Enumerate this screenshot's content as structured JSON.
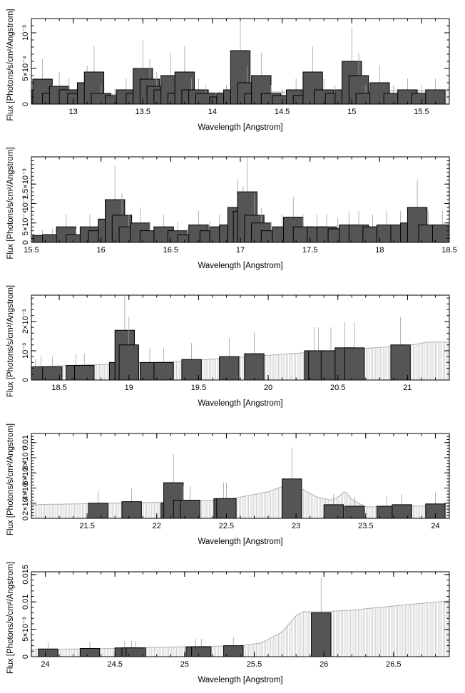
{
  "chart_data": [
    {
      "type": "line",
      "xlabel": "Wavelength [Angstrom]",
      "ylabel": "Flux [Photons/s/cm²/Angstrom]",
      "xlim": [
        12.7,
        15.7
      ],
      "ylim": [
        0,
        0.0012
      ],
      "xticks": [
        {
          "v": 13,
          "label": "13"
        },
        {
          "v": 13.5,
          "label": "13.5"
        },
        {
          "v": 14,
          "label": "14"
        },
        {
          "v": 14.5,
          "label": "14.5"
        },
        {
          "v": 15,
          "label": "15"
        },
        {
          "v": 15.5,
          "label": "15.5"
        }
      ],
      "yticks": [
        {
          "v": 0,
          "label": "0"
        },
        {
          "v": 0.0005,
          "label": "5×10⁻⁴"
        },
        {
          "v": 0.001,
          "label": "10⁻³"
        }
      ],
      "series": [
        {
          "role": "model",
          "x": [
            12.7,
            12.9,
            13.1,
            13.3,
            13.5,
            13.7,
            13.9,
            14.1,
            14.3,
            14.5,
            14.7,
            14.9,
            15.1,
            15.3,
            15.5,
            15.7
          ],
          "y": [
            0.00012,
            0.00012,
            0.00013,
            0.00014,
            0.00015,
            0.00015,
            0.00016,
            0.00016,
            0.00017,
            0.00017,
            0.00018,
            0.00018,
            0.00018,
            0.00019,
            0.00019,
            0.00019
          ]
        },
        {
          "role": "data",
          "x": [
            12.72,
            12.78,
            12.85,
            12.9,
            12.97,
            13.03,
            13.1,
            13.15,
            13.2,
            13.3,
            13.38,
            13.45,
            13.5,
            13.55,
            13.6,
            13.65,
            13.7,
            13.75,
            13.8,
            13.85,
            13.9,
            13.95,
            14.05,
            14.1,
            14.15,
            14.2,
            14.25,
            14.3,
            14.35,
            14.42,
            14.5,
            14.6,
            14.65,
            14.72,
            14.8,
            14.88,
            14.95,
            15.0,
            15.05,
            15.1,
            15.2,
            15.3,
            15.4,
            15.5,
            15.6
          ],
          "y": [
            0.0002,
            0.00035,
            0.00015,
            0.00025,
            0.0002,
            0.00015,
            0.0003,
            0.00045,
            0.00015,
            0.00012,
            0.0002,
            0.00015,
            0.0005,
            0.00035,
            0.00025,
            0.0002,
            0.0004,
            0.00015,
            0.00045,
            0.0002,
            0.0002,
            0.00015,
            0.0001,
            0.00015,
            0.0002,
            0.00075,
            0.0003,
            0.00015,
            0.0004,
            0.00015,
            0.00012,
            0.0002,
            0.00012,
            0.00045,
            0.0002,
            0.00015,
            0.0002,
            0.0006,
            0.0004,
            0.00015,
            0.0003,
            0.00015,
            0.0002,
            0.00015,
            0.0002
          ]
        }
      ]
    },
    {
      "type": "line",
      "xlabel": "Wavelength [Angstrom]",
      "ylabel": "Flux [Photons/s/cm²/Angstrom]",
      "xlim": [
        15.5,
        18.5
      ],
      "ylim": [
        0,
        0.0022
      ],
      "xticks": [
        {
          "v": 15.5,
          "label": "15.5"
        },
        {
          "v": 16,
          "label": "16"
        },
        {
          "v": 16.5,
          "label": "16.5"
        },
        {
          "v": 17,
          "label": "17"
        },
        {
          "v": 17.5,
          "label": "17.5"
        },
        {
          "v": 18,
          "label": "18"
        },
        {
          "v": 18.5,
          "label": "18.5"
        }
      ],
      "yticks": [
        {
          "v": 0,
          "label": "0"
        },
        {
          "v": 0.0005,
          "label": "5×10⁻⁴"
        },
        {
          "v": 0.001,
          "label": "10⁻³"
        },
        {
          "v": 0.0015,
          "label": "1.5×10⁻³"
        }
      ],
      "series": [
        {
          "role": "model",
          "x": [
            15.5,
            15.8,
            16.1,
            16.4,
            16.7,
            17.0,
            17.3,
            17.6,
            17.9,
            18.2,
            18.5
          ],
          "y": [
            0.00015,
            0.00018,
            0.0002,
            0.00022,
            0.00025,
            0.00028,
            0.0003,
            0.00035,
            0.0004,
            0.00042,
            0.00045
          ]
        },
        {
          "role": "data",
          "x": [
            15.58,
            15.65,
            15.75,
            15.82,
            15.92,
            15.98,
            16.05,
            16.1,
            16.15,
            16.2,
            16.28,
            16.35,
            16.45,
            16.55,
            16.62,
            16.7,
            16.78,
            16.85,
            16.92,
            16.98,
            17.02,
            17.05,
            17.1,
            17.15,
            17.22,
            17.3,
            17.38,
            17.45,
            17.55,
            17.62,
            17.7,
            17.78,
            17.85,
            17.95,
            18.05,
            18.15,
            18.22,
            18.27,
            18.35,
            18.45
          ],
          "y": [
            0.00018,
            0.0002,
            0.0004,
            0.0002,
            0.0004,
            0.0003,
            0.0006,
            0.0011,
            0.0007,
            0.0004,
            0.0005,
            0.0003,
            0.0004,
            0.0003,
            0.0002,
            0.00045,
            0.0003,
            0.0004,
            0.00045,
            0.0009,
            0.0008,
            0.0013,
            0.0007,
            0.0005,
            0.0003,
            0.0004,
            0.00065,
            0.0004,
            0.0004,
            0.0004,
            0.00035,
            0.00045,
            0.00045,
            0.0004,
            0.00045,
            0.00045,
            0.0005,
            0.0009,
            0.00045,
            0.00045
          ]
        }
      ]
    },
    {
      "type": "line",
      "xlabel": "Wavelength [Angstrom]",
      "ylabel": "Flux [Photons/s/cm²/Angstrom]",
      "xlim": [
        18.3,
        21.3
      ],
      "ylim": [
        0,
        0.0029
      ],
      "xticks": [
        {
          "v": 18.5,
          "label": "18.5"
        },
        {
          "v": 19,
          "label": "19"
        },
        {
          "v": 19.5,
          "label": "19.5"
        },
        {
          "v": 20,
          "label": "20"
        },
        {
          "v": 20.5,
          "label": "20.5"
        },
        {
          "v": 21,
          "label": "21"
        }
      ],
      "yticks": [
        {
          "v": 0,
          "label": "0"
        },
        {
          "v": 0.001,
          "label": "10⁻³"
        },
        {
          "v": 0.002,
          "label": "2×10⁻³"
        }
      ],
      "series": [
        {
          "role": "model",
          "x": [
            18.3,
            18.6,
            18.9,
            19.2,
            19.5,
            19.8,
            20.1,
            20.4,
            20.7,
            21.0,
            21.15,
            21.3
          ],
          "y": [
            0.00045,
            0.0005,
            0.00055,
            0.0006,
            0.00068,
            0.00078,
            0.00088,
            0.00098,
            0.00108,
            0.00118,
            0.0013,
            0.0013
          ]
        },
        {
          "role": "data",
          "x": [
            18.33,
            18.37,
            18.45,
            18.62,
            18.68,
            18.93,
            18.97,
            19.0,
            19.15,
            19.25,
            19.45,
            19.72,
            19.9,
            20.33,
            20.36,
            20.45,
            20.55,
            20.62,
            20.95
          ],
          "y": [
            0.0004,
            0.00045,
            0.00045,
            0.0005,
            0.0005,
            0.0006,
            0.0017,
            0.0012,
            0.0006,
            0.0006,
            0.0007,
            0.0008,
            0.0009,
            0.001,
            0.001,
            0.001,
            0.0011,
            0.0011,
            0.0012
          ]
        }
      ]
    },
    {
      "type": "line",
      "xlabel": "Wavelength [Angstrom]",
      "ylabel": "Flux [Photons/s/cm²/Angstrom]",
      "xlim": [
        21.1,
        24.1
      ],
      "ylim": [
        0,
        0.0112
      ],
      "xticks": [
        {
          "v": 21.5,
          "label": "21.5"
        },
        {
          "v": 22,
          "label": "22"
        },
        {
          "v": 22.5,
          "label": "22.5"
        },
        {
          "v": 23,
          "label": "23"
        },
        {
          "v": 23.5,
          "label": "23.5"
        },
        {
          "v": 24,
          "label": "24"
        }
      ],
      "yticks": [
        {
          "v": 0,
          "label": "0"
        },
        {
          "v": 0.002,
          "label": "2×10⁻³"
        },
        {
          "v": 0.004,
          "label": "4×10⁻³"
        },
        {
          "v": 0.006,
          "label": "6×10⁻³"
        },
        {
          "v": 0.008,
          "label": "8×10⁻³"
        },
        {
          "v": 0.01,
          "label": "0.01"
        }
      ],
      "series": [
        {
          "role": "model",
          "x": [
            21.1,
            21.4,
            21.7,
            22.0,
            22.3,
            22.5,
            22.6,
            22.8,
            22.9,
            22.95,
            23.05,
            23.15,
            23.25,
            23.3,
            23.35,
            23.4,
            23.5,
            23.8,
            24.1
          ],
          "y": [
            0.0018,
            0.0019,
            0.002,
            0.0021,
            0.0023,
            0.0025,
            0.0028,
            0.0035,
            0.0042,
            0.0046,
            0.0038,
            0.0028,
            0.0024,
            0.0028,
            0.0036,
            0.0025,
            0.0015,
            0.0016,
            0.0017
          ]
        },
        {
          "role": "data",
          "x": [
            21.58,
            21.82,
            22.1,
            22.12,
            22.19,
            22.24,
            22.48,
            22.5,
            22.97,
            23.27,
            23.42,
            23.65,
            23.76,
            24.0
          ],
          "y": [
            0.002,
            0.0022,
            0.002,
            0.0047,
            0.0024,
            0.0024,
            0.0026,
            0.0026,
            0.0052,
            0.0018,
            0.0016,
            0.0016,
            0.0018,
            0.0019
          ]
        }
      ]
    },
    {
      "type": "line",
      "xlabel": "Wavelength [Angstrom]",
      "ylabel": "Flux [Photons/s/cm²/Angstrom]",
      "xlim": [
        23.9,
        26.9
      ],
      "ylim": [
        0,
        0.0155
      ],
      "xticks": [
        {
          "v": 24,
          "label": "24"
        },
        {
          "v": 24.5,
          "label": "24.5"
        },
        {
          "v": 25,
          "label": "25"
        },
        {
          "v": 25.5,
          "label": "25.5"
        },
        {
          "v": 26,
          "label": "26"
        },
        {
          "v": 26.5,
          "label": "26.5"
        }
      ],
      "yticks": [
        {
          "v": 0,
          "label": "0"
        },
        {
          "v": 0.005,
          "label": "5×10⁻³"
        },
        {
          "v": 0.01,
          "label": "0.01"
        },
        {
          "v": 0.015,
          "label": "0.015"
        }
      ],
      "series": [
        {
          "role": "model",
          "x": [
            23.9,
            24.5,
            25.0,
            25.4,
            25.55,
            25.7,
            25.8,
            25.85,
            26.0,
            26.2,
            26.4,
            26.6,
            26.9
          ],
          "y": [
            0.0013,
            0.0015,
            0.0018,
            0.002,
            0.0025,
            0.0045,
            0.0075,
            0.0082,
            0.0082,
            0.0085,
            0.009,
            0.0095,
            0.0102
          ]
        },
        {
          "role": "data",
          "x": [
            24.02,
            24.32,
            24.57,
            24.62,
            24.65,
            25.08,
            25.12,
            25.35,
            25.98
          ],
          "y": [
            0.0014,
            0.0015,
            0.0016,
            0.0016,
            0.0016,
            0.0018,
            0.0018,
            0.002,
            0.008
          ]
        }
      ]
    }
  ]
}
